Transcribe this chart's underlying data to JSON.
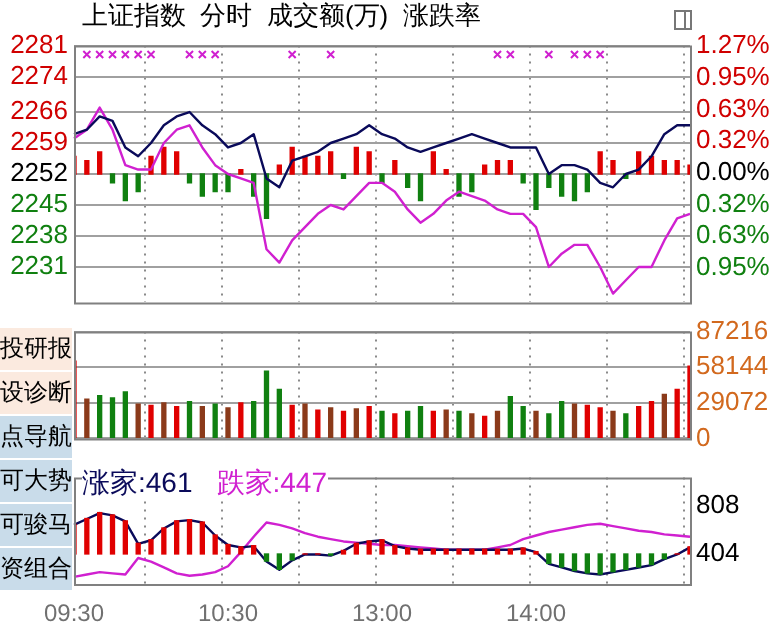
{
  "chart_data": [
    {
      "type": "line",
      "title": "上证指数  分时  成交额(万)  涨跌率",
      "categories": [
        null,
        null,
        null,
        null,
        null,
        null,
        null,
        null,
        null,
        null,
        null,
        null,
        null,
        null,
        null,
        null,
        null,
        null,
        null,
        null,
        null,
        null,
        null,
        null,
        null,
        null,
        null,
        null,
        null,
        null,
        null,
        null,
        null,
        null,
        null,
        null,
        null,
        null,
        null,
        null,
        null,
        null,
        null,
        null,
        null,
        null,
        null,
        null,
        null
      ],
      "ylim": [
        2223,
        2281
      ],
      "yticks": [
        2231,
        2238,
        2245,
        2252,
        2259,
        2266,
        2274,
        2281
      ],
      "y2lim": [
        -1.3,
        1.27
      ],
      "y2ticks": [
        {
          "value": 1.27,
          "label": "1.27%"
        },
        {
          "value": 0.95,
          "label": "0.95%"
        },
        {
          "value": 0.63,
          "label": "0.63%"
        },
        {
          "value": 0.32,
          "label": "0.32%"
        },
        {
          "value": 0,
          "label": "0.00%"
        },
        {
          "value": -0.32,
          "label": "0.32%"
        },
        {
          "value": -0.63,
          "label": "0.63%"
        },
        {
          "value": -0.95,
          "label": "0.95%"
        }
      ],
      "grid": true,
      "tick_labels": "y",
      "series": [
        {
          "type": "line",
          "color": "#0a0a5a",
          "values": [
            2261,
            2262,
            2265,
            2264,
            2258,
            2256,
            2259,
            2263,
            2265,
            2266,
            2263,
            2261,
            2258,
            2259,
            2261,
            2251,
            2249,
            2255,
            2256,
            2257,
            2259,
            2260,
            2261,
            2263,
            2261,
            2260,
            2258,
            2257,
            2258,
            2259,
            2260,
            2261,
            2260,
            2259,
            2258,
            2258,
            2258,
            2252,
            2254,
            2254,
            2253,
            2250,
            2249,
            2252,
            2253,
            2256,
            2261,
            2263,
            2263
          ]
        },
        {
          "type": "line",
          "color": "#d020d0",
          "values": [
            2260,
            2262,
            2267,
            2262,
            2254,
            2253,
            2253,
            2259,
            2262,
            2263,
            2258,
            2254,
            2252,
            2251,
            2250,
            2235,
            2232,
            2237,
            2240,
            2243,
            2245,
            2244,
            2247,
            2250,
            2250,
            2248,
            2244,
            2241,
            2243,
            2246,
            2248,
            2247,
            2246,
            2244,
            2243,
            2243,
            2240,
            2231,
            2234,
            2236,
            2236,
            2231,
            2225,
            2228,
            2231,
            2231,
            2237,
            2242,
            2243
          ]
        },
        {
          "type": "bar",
          "base": [
            2252,
            2252,
            2252,
            2252,
            2252,
            2252,
            2252,
            2252,
            2252,
            2252,
            2252,
            2252,
            2252,
            2252,
            2252,
            2252,
            2252,
            2252,
            2252,
            2252,
            2252,
            2252,
            2252,
            2252,
            2252,
            2252,
            2252,
            2252,
            2252,
            2252,
            2252,
            2252,
            2252,
            2252,
            2252,
            2252,
            2252,
            2252,
            2252,
            2252,
            2252,
            2252,
            2252,
            2252,
            2252,
            2252,
            2252,
            2252,
            2252
          ],
          "values": [
            4,
            3,
            5,
            -2,
            -6,
            -4,
            4,
            6,
            5,
            -2,
            -5,
            -4,
            -4,
            1,
            -5,
            -10,
            2,
            6,
            4,
            4,
            5,
            -1,
            6,
            5,
            -2,
            3,
            -3,
            -6,
            5,
            1,
            -5,
            -4,
            2,
            3,
            3,
            -2,
            -8,
            -3,
            -5,
            -6,
            -4,
            5,
            3,
            -1,
            5,
            4,
            3,
            3,
            2
          ],
          "colors": [
            "#e00000",
            "#e00000",
            "#e00000",
            "#108010",
            "#108010",
            "#108010",
            "#e00000",
            "#e00000",
            "#e00000",
            "#108010",
            "#108010",
            "#108010",
            "#108010",
            "#e00000",
            "#108010",
            "#108010",
            "#e00000",
            "#e00000",
            "#e00000",
            "#e00000",
            "#e00000",
            "#108010",
            "#e00000",
            "#e00000",
            "#108010",
            "#e00000",
            "#108010",
            "#108010",
            "#e00000",
            "#e00000",
            "#108010",
            "#108010",
            "#e00000",
            "#e00000",
            "#e00000",
            "#108010",
            "#108010",
            "#108010",
            "#108010",
            "#108010",
            "#108010",
            "#e00000",
            "#e00000",
            "#108010",
            "#e00000",
            "#e00000",
            "#e00000",
            "#e00000",
            "#e00000"
          ]
        },
        {
          "type": "scatter",
          "marker": "cross",
          "color": "#d020d0",
          "values": [
            null,
            2279,
            2279,
            2279,
            2279,
            2279,
            2279,
            null,
            null,
            2279,
            2279,
            2279,
            null,
            null,
            null,
            null,
            null,
            2279,
            null,
            null,
            2279,
            null,
            null,
            null,
            null,
            null,
            null,
            null,
            null,
            null,
            null,
            null,
            null,
            2279,
            2279,
            null,
            null,
            2279,
            null,
            2279,
            2279,
            2279,
            null,
            null,
            null,
            null,
            null,
            null,
            null
          ]
        }
      ]
    },
    {
      "type": "bar",
      "categories": [
        null,
        null,
        null,
        null,
        null,
        null,
        null,
        null,
        null,
        null,
        null,
        null,
        null,
        null,
        null,
        null,
        null,
        null,
        null,
        null,
        null,
        null,
        null,
        null,
        null,
        null,
        null,
        null,
        null,
        null,
        null,
        null,
        null,
        null,
        null,
        null,
        null,
        null,
        null,
        null,
        null,
        null,
        null,
        null,
        null,
        null,
        null,
        null,
        null
      ],
      "ylim": [
        0,
        87216
      ],
      "yticks": [
        0,
        29072,
        58144,
        87216
      ],
      "grid": true,
      "tick_labels": "y",
      "series": [
        {
          "type": "bar",
          "values": [
            63000,
            32000,
            35000,
            33000,
            38000,
            28000,
            27000,
            29000,
            26000,
            30000,
            26000,
            28000,
            25000,
            29000,
            30000,
            55000,
            40000,
            27000,
            28000,
            23000,
            25000,
            22000,
            24000,
            26000,
            22000,
            20000,
            22000,
            26000,
            22000,
            23000,
            22000,
            20000,
            18000,
            22000,
            34000,
            26000,
            22000,
            20000,
            30000,
            28000,
            27000,
            25000,
            22000,
            20000,
            26000,
            30000,
            36000,
            40000,
            59000
          ],
          "colors": [
            "#e00000",
            "#8b3a1a",
            "#108010",
            "#108010",
            "#108010",
            "#8b3a1a",
            "#e00000",
            "#8b3a1a",
            "#e00000",
            "#108010",
            "#8b3a1a",
            "#108010",
            "#8b3a1a",
            "#e00000",
            "#108010",
            "#108010",
            "#108010",
            "#e00000",
            "#8b3a1a",
            "#e00000",
            "#8b3a1a",
            "#e00000",
            "#8b3a1a",
            "#e00000",
            "#108010",
            "#e00000",
            "#108010",
            "#108010",
            "#e00000",
            "#8b3a1a",
            "#108010",
            "#8b3a1a",
            "#e00000",
            "#8b3a1a",
            "#108010",
            "#108010",
            "#8b3a1a",
            "#108010",
            "#108010",
            "#8b3a1a",
            "#e00000",
            "#e00000",
            "#8b3a1a",
            "#108010",
            "#e00000",
            "#e00000",
            "#8b3a1a",
            "#e00000",
            "#e00000"
          ]
        }
      ]
    },
    {
      "type": "line",
      "categories": [
        "09:30",
        null,
        null,
        null,
        null,
        null,
        null,
        null,
        null,
        null,
        null,
        null,
        "10:30",
        null,
        null,
        null,
        null,
        null,
        null,
        null,
        null,
        null,
        null,
        null,
        "13:00",
        null,
        null,
        null,
        null,
        null,
        null,
        null,
        null,
        null,
        null,
        null,
        "14:00",
        null,
        null,
        null,
        null,
        null,
        null,
        null,
        null,
        null,
        null,
        null,
        null
      ],
      "ylim": [
        150,
        1050
      ],
      "yticks": [
        404,
        808
      ],
      "grid": "x",
      "legend": "top left",
      "series": [
        {
          "type": "bar",
          "base": [
            404,
            404,
            404,
            404,
            404,
            404,
            404,
            404,
            404,
            404,
            404,
            404,
            404,
            404,
            404,
            404,
            404,
            404,
            404,
            404,
            404,
            404,
            404,
            404,
            404,
            404,
            404,
            404,
            404,
            404,
            404,
            404,
            404,
            404,
            404,
            404,
            404,
            404,
            404,
            404,
            404,
            404,
            404,
            404,
            404,
            404,
            404,
            404,
            404
          ],
          "values": [
            250,
            300,
            350,
            330,
            280,
            90,
            120,
            220,
            280,
            290,
            270,
            160,
            80,
            60,
            70,
            -60,
            -130,
            -50,
            0,
            0,
            -10,
            30,
            90,
            110,
            120,
            70,
            50,
            40,
            40,
            40,
            40,
            40,
            40,
            40,
            40,
            50,
            20,
            -80,
            -110,
            -140,
            -160,
            -170,
            -150,
            -130,
            -110,
            -90,
            -40,
            0,
            60
          ],
          "colors": [
            "#e00000",
            "#e00000",
            "#e00000",
            "#e00000",
            "#e00000",
            "#e00000",
            "#e00000",
            "#e00000",
            "#e00000",
            "#e00000",
            "#e00000",
            "#e00000",
            "#e00000",
            "#e00000",
            "#e00000",
            "#108010",
            "#108010",
            "#108010",
            "#e00000",
            "#e00000",
            "#108010",
            "#e00000",
            "#e00000",
            "#e00000",
            "#e00000",
            "#e00000",
            "#e00000",
            "#e00000",
            "#e00000",
            "#e00000",
            "#e00000",
            "#e00000",
            "#e00000",
            "#e00000",
            "#e00000",
            "#e00000",
            "#e00000",
            "#108010",
            "#108010",
            "#108010",
            "#108010",
            "#108010",
            "#108010",
            "#108010",
            "#108010",
            "#108010",
            "#108010",
            "#e00000",
            "#e00000"
          ]
        },
        {
          "type": "line",
          "name": "涨家:461",
          "color": "#0a0a5a",
          "values": [
            650,
            700,
            750,
            730,
            680,
            490,
            520,
            620,
            680,
            690,
            670,
            560,
            480,
            460,
            470,
            340,
            270,
            350,
            400,
            400,
            390,
            430,
            490,
            510,
            520,
            470,
            450,
            440,
            440,
            440,
            440,
            440,
            440,
            440,
            440,
            450,
            420,
            320,
            290,
            260,
            240,
            230,
            250,
            270,
            290,
            310,
            360,
            400,
            460
          ]
        },
        {
          "type": "line",
          "name": "跌家:447",
          "color": "#d020d0",
          "values": [
            210,
            230,
            250,
            240,
            230,
            370,
            340,
            290,
            240,
            220,
            230,
            250,
            300,
            420,
            550,
            670,
            650,
            620,
            580,
            550,
            530,
            510,
            500,
            490,
            480,
            480,
            470,
            460,
            450,
            440,
            440,
            440,
            440,
            460,
            480,
            530,
            560,
            590,
            610,
            630,
            650,
            660,
            640,
            620,
            600,
            590,
            570,
            560,
            550
          ]
        }
      ]
    },
    {
      "type": "other",
      "annotations": [
        "投研报",
        "设诊断",
        "点导航",
        "可大势",
        "可骏马",
        "资组合"
      ]
    }
  ]
}
